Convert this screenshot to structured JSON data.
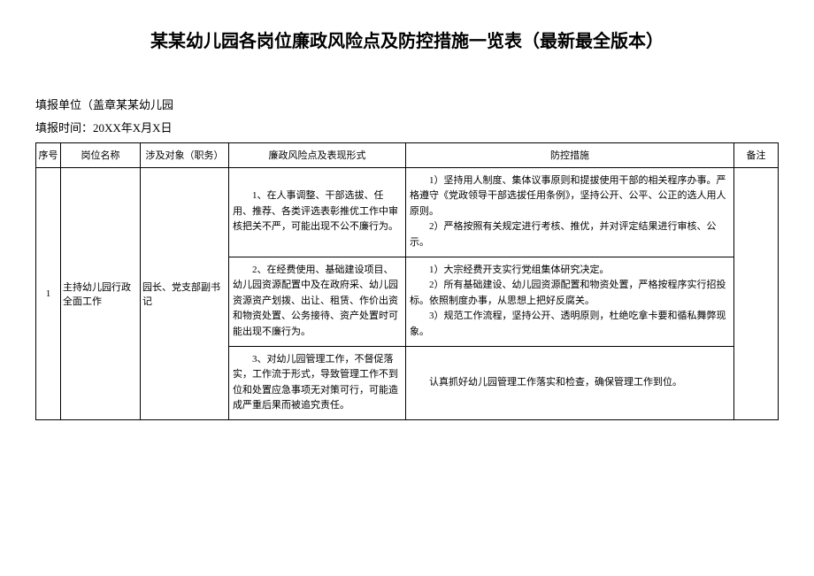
{
  "title": "某某幼儿园各岗位廉政风险点及防控措施一览表（最新最全版本）",
  "meta": {
    "unit": "填报单位（盖章某某幼儿园",
    "date": "填报时间：20XX年X月X日"
  },
  "headers": {
    "seq": "序号",
    "post": "岗位名称",
    "obj": "涉及对象（职务）",
    "risk": "廉政风险点及表现形式",
    "measure": "防控措施",
    "remark": "备注"
  },
  "row": {
    "seq": "1",
    "post": "主持幼儿园行政全面工作",
    "obj": "园长、党支部副书记",
    "r1": "1、在人事调整、干部选拔、任用、推荐、各类评选表彰推优工作中审核把关不严，可能出现不公不廉行为。",
    "m1a": "1）坚持用人制度、集体议事原则和提拔使用干部的相关程序办事。严格遵守《党政领导干部选拔任用条例》，坚持公开、公平、公正的选人用人原则。",
    "m1b": "2）严格按照有关规定进行考核、推优，并对评定结果进行审核、公示。",
    "r2": "2、在经费使用、基础建设项目、幼儿园资源配置中及在政府采、幼儿园资源资产划拨、出让、租赁、作价出资和物资处置、公务接待、资产处置时可能出现不廉行为。",
    "m2a": "1）大宗经费开支实行党组集体研究决定。",
    "m2b": "2）所有基础建设、幼儿园资源配置和物资处置，严格按程序实行招投标。依照制度办事，从思想上把好反腐关。",
    "m2c": "3）规范工作流程，坚持公开、透明原则，杜绝吃拿卡要和循私舞弊现象。",
    "r3": "3、对幼儿园管理工作，不督促落实，工作流于形式，导致管理工作不到位和处置应急事项无对策可行，可能造成严重后果而被追究责任。",
    "m3": "认真抓好幼儿园管理工作落实和检查，确保管理工作到位。"
  }
}
